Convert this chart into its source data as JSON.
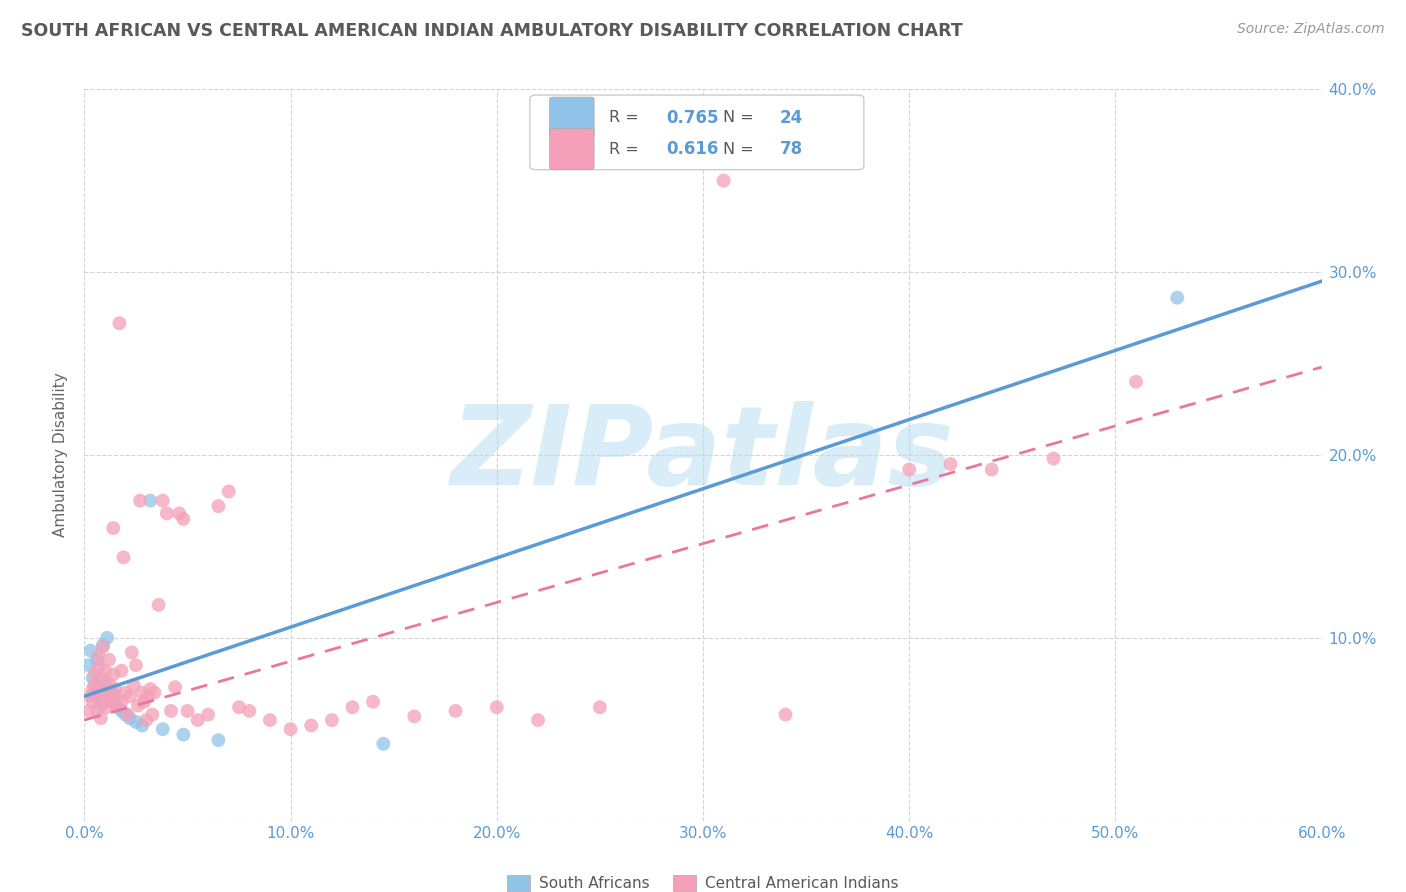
{
  "title": "SOUTH AFRICAN VS CENTRAL AMERICAN INDIAN AMBULATORY DISABILITY CORRELATION CHART",
  "source": "Source: ZipAtlas.com",
  "ylabel": "Ambulatory Disability",
  "xlim": [
    0.0,
    0.6
  ],
  "ylim": [
    0.0,
    0.4
  ],
  "xticks": [
    0.0,
    0.1,
    0.2,
    0.3,
    0.4,
    0.5,
    0.6
  ],
  "yticks": [
    0.0,
    0.1,
    0.2,
    0.3,
    0.4
  ],
  "xtick_labels": [
    "0.0%",
    "10.0%",
    "20.0%",
    "30.0%",
    "40.0%",
    "50.0%",
    "60.0%"
  ],
  "ytick_labels": [
    "",
    "10.0%",
    "20.0%",
    "30.0%",
    "40.0%"
  ],
  "blue_scatter_color": "#91c4e8",
  "pink_scatter_color": "#f4a0b8",
  "blue_line_color": "#5b9bd5",
  "pink_line_color": "#e878a0",
  "tick_color": "#5b9bd5",
  "R_blue": 0.765,
  "N_blue": 24,
  "R_pink": 0.616,
  "N_pink": 78,
  "background_color": "#ffffff",
  "grid_color": "#d0d0d0",
  "title_color": "#595959",
  "source_color": "#999999",
  "watermark": "ZIPatlas",
  "watermark_color": "#d8edf8",
  "legend_label_blue": "South Africans",
  "legend_label_pink": "Central American Indians",
  "legend_text_color": "#595959",
  "legend_value_color": "#5b9bd5",
  "blue_scatter": [
    [
      0.002,
      0.085
    ],
    [
      0.003,
      0.093
    ],
    [
      0.004,
      0.078
    ],
    [
      0.005,
      0.068
    ],
    [
      0.006,
      0.088
    ],
    [
      0.007,
      0.072
    ],
    [
      0.008,
      0.063
    ],
    [
      0.009,
      0.096
    ],
    [
      0.01,
      0.075
    ],
    [
      0.011,
      0.1
    ],
    [
      0.012,
      0.068
    ],
    [
      0.014,
      0.07
    ],
    [
      0.016,
      0.062
    ],
    [
      0.018,
      0.06
    ],
    [
      0.02,
      0.058
    ],
    [
      0.022,
      0.056
    ],
    [
      0.025,
      0.054
    ],
    [
      0.028,
      0.052
    ],
    [
      0.032,
      0.175
    ],
    [
      0.038,
      0.05
    ],
    [
      0.048,
      0.047
    ],
    [
      0.065,
      0.044
    ],
    [
      0.145,
      0.042
    ],
    [
      0.53,
      0.286
    ]
  ],
  "pink_scatter": [
    [
      0.002,
      0.06
    ],
    [
      0.003,
      0.068
    ],
    [
      0.004,
      0.072
    ],
    [
      0.004,
      0.065
    ],
    [
      0.005,
      0.08
    ],
    [
      0.005,
      0.074
    ],
    [
      0.006,
      0.06
    ],
    [
      0.006,
      0.07
    ],
    [
      0.007,
      0.09
    ],
    [
      0.007,
      0.084
    ],
    [
      0.008,
      0.078
    ],
    [
      0.008,
      0.056
    ],
    [
      0.009,
      0.065
    ],
    [
      0.009,
      0.095
    ],
    [
      0.01,
      0.082
    ],
    [
      0.01,
      0.068
    ],
    [
      0.011,
      0.072
    ],
    [
      0.011,
      0.062
    ],
    [
      0.012,
      0.075
    ],
    [
      0.012,
      0.088
    ],
    [
      0.013,
      0.07
    ],
    [
      0.013,
      0.065
    ],
    [
      0.014,
      0.08
    ],
    [
      0.014,
      0.16
    ],
    [
      0.015,
      0.072
    ],
    [
      0.015,
      0.068
    ],
    [
      0.016,
      0.063
    ],
    [
      0.017,
      0.272
    ],
    [
      0.018,
      0.065
    ],
    [
      0.018,
      0.082
    ],
    [
      0.019,
      0.144
    ],
    [
      0.02,
      0.07
    ],
    [
      0.021,
      0.058
    ],
    [
      0.022,
      0.068
    ],
    [
      0.023,
      0.092
    ],
    [
      0.024,
      0.074
    ],
    [
      0.025,
      0.085
    ],
    [
      0.026,
      0.063
    ],
    [
      0.027,
      0.175
    ],
    [
      0.028,
      0.07
    ],
    [
      0.029,
      0.065
    ],
    [
      0.03,
      0.055
    ],
    [
      0.031,
      0.068
    ],
    [
      0.032,
      0.072
    ],
    [
      0.033,
      0.058
    ],
    [
      0.034,
      0.07
    ],
    [
      0.036,
      0.118
    ],
    [
      0.038,
      0.175
    ],
    [
      0.04,
      0.168
    ],
    [
      0.042,
      0.06
    ],
    [
      0.044,
      0.073
    ],
    [
      0.046,
      0.168
    ],
    [
      0.048,
      0.165
    ],
    [
      0.05,
      0.06
    ],
    [
      0.055,
      0.055
    ],
    [
      0.06,
      0.058
    ],
    [
      0.065,
      0.172
    ],
    [
      0.07,
      0.18
    ],
    [
      0.075,
      0.062
    ],
    [
      0.08,
      0.06
    ],
    [
      0.09,
      0.055
    ],
    [
      0.1,
      0.05
    ],
    [
      0.11,
      0.052
    ],
    [
      0.12,
      0.055
    ],
    [
      0.13,
      0.062
    ],
    [
      0.14,
      0.065
    ],
    [
      0.16,
      0.057
    ],
    [
      0.18,
      0.06
    ],
    [
      0.2,
      0.062
    ],
    [
      0.22,
      0.055
    ],
    [
      0.25,
      0.062
    ],
    [
      0.31,
      0.35
    ],
    [
      0.34,
      0.058
    ],
    [
      0.4,
      0.192
    ],
    [
      0.42,
      0.195
    ],
    [
      0.44,
      0.192
    ],
    [
      0.47,
      0.198
    ],
    [
      0.51,
      0.24
    ]
  ],
  "blue_trendline_x": [
    0.0,
    0.6
  ],
  "blue_trendline_y": [
    0.068,
    0.295
  ],
  "pink_trendline_x": [
    0.0,
    0.6
  ],
  "pink_trendline_y": [
    0.055,
    0.248
  ]
}
